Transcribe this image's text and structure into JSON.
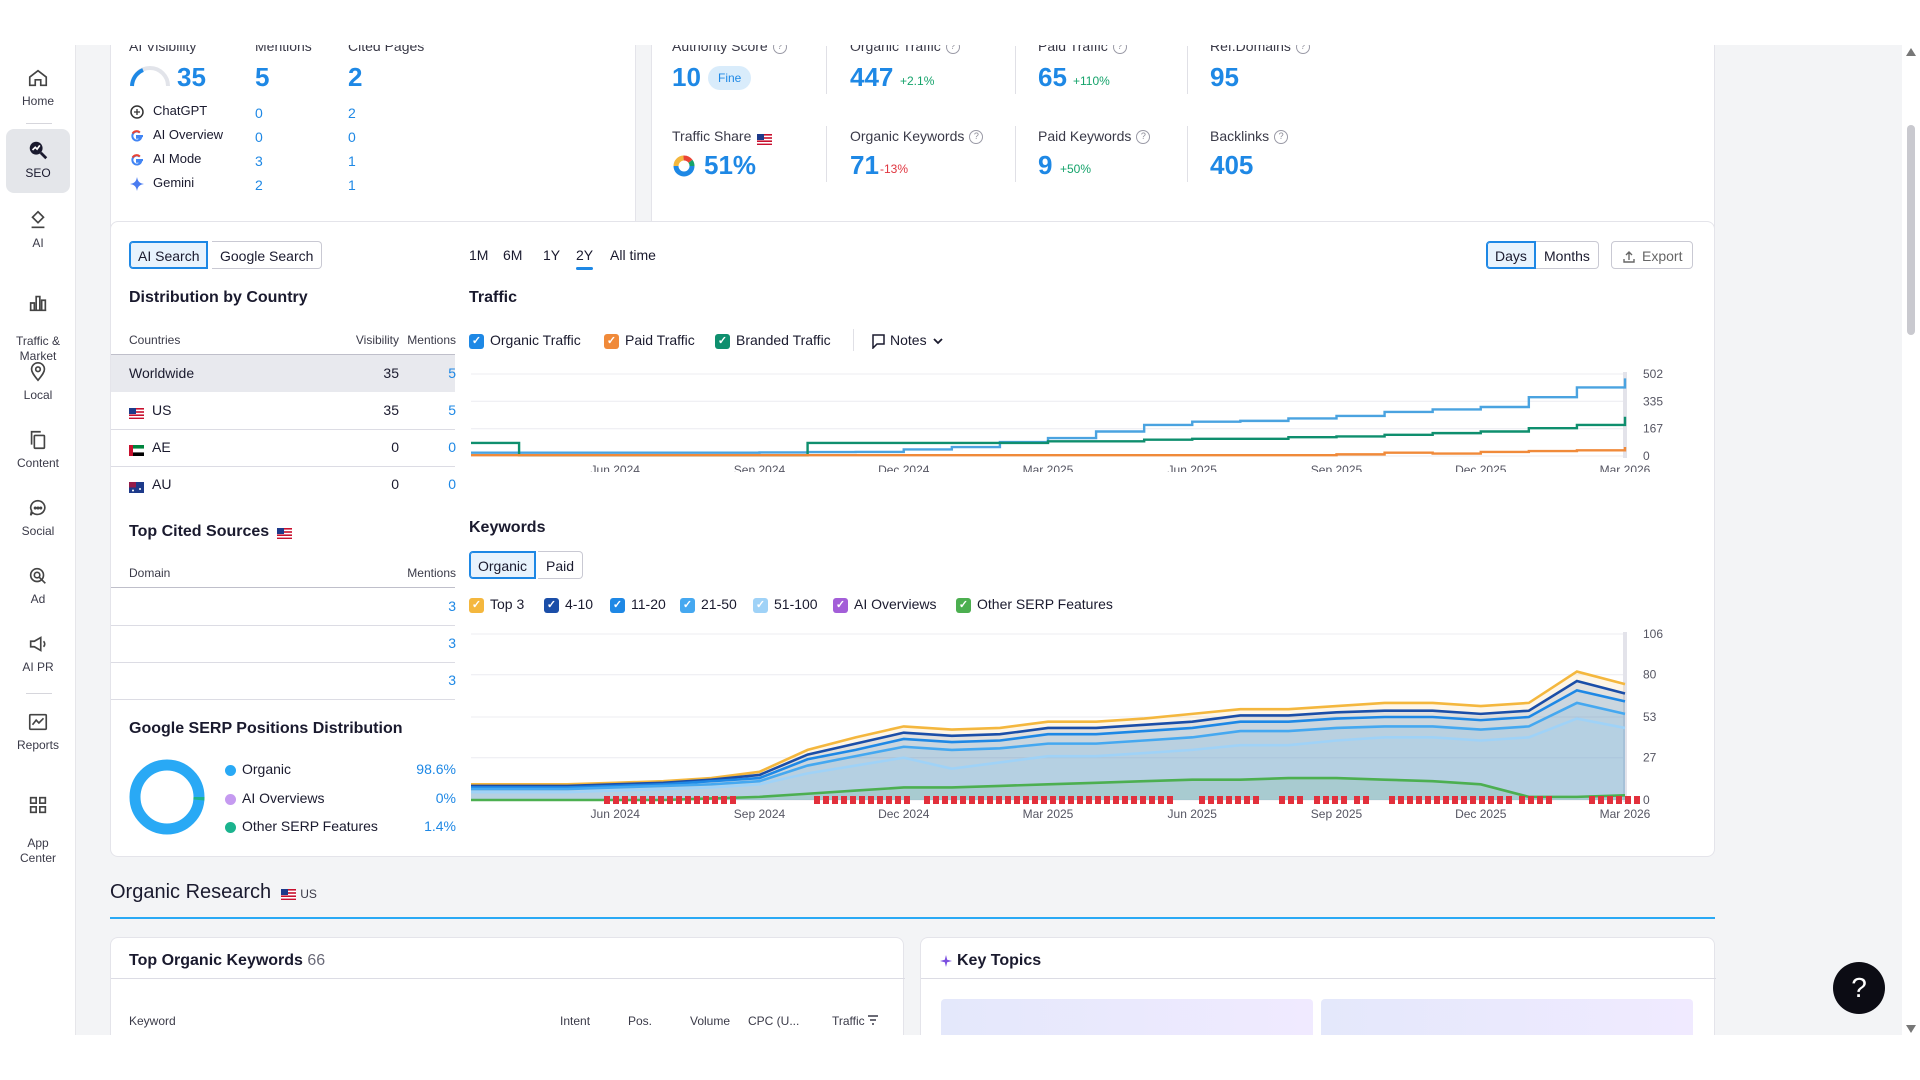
{
  "sidebar": {
    "items": [
      {
        "label": "Home",
        "icon": "home-icon"
      },
      {
        "label": "SEO",
        "icon": "seo-icon",
        "active": true
      },
      {
        "label": "AI",
        "icon": "ai-icon"
      },
      {
        "label": "Traffic &\nMarket",
        "icon": "bar-chart-icon"
      },
      {
        "label": "Local",
        "icon": "location-pin-icon"
      },
      {
        "label": "Content",
        "icon": "content-icon"
      },
      {
        "label": "Social",
        "icon": "chat-bubble-icon"
      },
      {
        "label": "Ad",
        "icon": "ad-target-icon"
      },
      {
        "label": "AI PR",
        "icon": "megaphone-icon"
      },
      {
        "label": "Reports",
        "icon": "reports-icon"
      },
      {
        "label": "App\nCenter",
        "icon": "app-grid-icon"
      }
    ]
  },
  "ai_card": {
    "headers": [
      "AI Visibility",
      "Mentions",
      "Cited Pages"
    ],
    "visibility": "35",
    "mentions": "5",
    "cited_pages": "2",
    "rows": [
      {
        "name": "ChatGPT",
        "mentions": "0",
        "cited": "2",
        "icon": "chatgpt-icon"
      },
      {
        "name": "AI Overview",
        "mentions": "0",
        "cited": "0",
        "icon": "google-icon"
      },
      {
        "name": "AI Mode",
        "mentions": "3",
        "cited": "1",
        "icon": "google-icon"
      },
      {
        "name": "Gemini",
        "mentions": "2",
        "cited": "1",
        "icon": "gemini-icon"
      }
    ]
  },
  "metrics": {
    "authority_score": {
      "label": "Authority Score",
      "value": "10",
      "badge": "Fine"
    },
    "organic_traffic": {
      "label": "Organic Traffic",
      "value": "447",
      "delta": "+2.1%"
    },
    "paid_traffic": {
      "label": "Paid Traffic",
      "value": "65",
      "delta": "+110%"
    },
    "ref_domains": {
      "label": "Ref.Domains",
      "value": "95"
    },
    "traffic_share": {
      "label": "Traffic Share",
      "value": "51%"
    },
    "organic_keywords": {
      "label": "Organic Keywords",
      "value": "71",
      "delta": "-13%"
    },
    "paid_keywords": {
      "label": "Paid Keywords",
      "value": "9",
      "delta": "+50%"
    },
    "backlinks": {
      "label": "Backlinks",
      "value": "405"
    }
  },
  "search_tabs": [
    "AI Search",
    "Google Search"
  ],
  "timeframes": [
    "1M",
    "6M",
    "1Y",
    "2Y",
    "All time"
  ],
  "active_timeframe": "2Y",
  "granularity": [
    "Days",
    "Months"
  ],
  "export_label": "Export",
  "distribution": {
    "title": "Distribution by Country",
    "headers": [
      "Countries",
      "Visibility",
      "Mentions"
    ],
    "rows": [
      {
        "country": "Worldwide",
        "visibility": "35",
        "mentions": "5"
      },
      {
        "country": "US",
        "visibility": "35",
        "mentions": "5"
      },
      {
        "country": "AE",
        "visibility": "0",
        "mentions": "0"
      },
      {
        "country": "AU",
        "visibility": "0",
        "mentions": "0"
      }
    ]
  },
  "cited_sources": {
    "title": "Top Cited Sources",
    "headers": [
      "Domain",
      "Mentions"
    ],
    "rows": [
      {
        "mentions": "3"
      },
      {
        "mentions": "3"
      },
      {
        "mentions": "3"
      }
    ]
  },
  "serp_distribution": {
    "title": "Google SERP Positions Distribution",
    "items": [
      {
        "label": "Organic",
        "value": "98.6%",
        "color": "#29a9f5"
      },
      {
        "label": "AI Overviews",
        "value": "0%",
        "color": "#c59af0"
      },
      {
        "label": "Other SERP Features",
        "value": "1.4%",
        "color": "#1bb38e"
      }
    ]
  },
  "traffic_section": {
    "title": "Traffic",
    "legend": [
      {
        "label": "Organic Traffic",
        "color": "#1e88e5"
      },
      {
        "label": "Paid Traffic",
        "color": "#f08a3a"
      },
      {
        "label": "Branded Traffic",
        "color": "#0f8f6e"
      }
    ],
    "notes_label": "Notes"
  },
  "keywords_section": {
    "title": "Keywords",
    "tabs": [
      "Organic",
      "Paid"
    ],
    "legend": [
      {
        "label": "Top 3",
        "color": "#f4b73e"
      },
      {
        "label": "4-10",
        "color": "#1b4ea8"
      },
      {
        "label": "11-20",
        "color": "#1e88e5"
      },
      {
        "label": "21-50",
        "color": "#45a8f0"
      },
      {
        "label": "51-100",
        "color": "#9fd2f7"
      },
      {
        "label": "AI Overviews",
        "color": "#a35ed8"
      },
      {
        "label": "Other SERP Features",
        "color": "#4caf50"
      }
    ]
  },
  "chart_data": [
    {
      "type": "line",
      "title": "Traffic",
      "x": [
        "2024-03",
        "2024-04",
        "2024-05",
        "2024-06",
        "2024-07",
        "2024-08",
        "2024-09",
        "2024-10",
        "2024-11",
        "2024-12",
        "2025-01",
        "2025-02",
        "2025-03",
        "2025-04",
        "2025-05",
        "2025-06",
        "2025-07",
        "2025-08",
        "2025-09",
        "2025-10",
        "2025-11",
        "2025-12",
        "2026-01",
        "2026-02",
        "2026-03"
      ],
      "x_tick_labels": [
        "Jun 2024",
        "Sep 2024",
        "Dec 2024",
        "Mar 2025",
        "Jun 2025",
        "Sep 2025",
        "Dec 2025",
        "Mar 2026"
      ],
      "ylim": [
        0,
        502
      ],
      "y_ticks": [
        0,
        167,
        335,
        502
      ],
      "series": [
        {
          "name": "Organic Traffic",
          "color": "#4aa3e0",
          "values": [
            20,
            20,
            20,
            20,
            20,
            20,
            22,
            24,
            25,
            40,
            55,
            85,
            110,
            150,
            190,
            210,
            215,
            230,
            245,
            270,
            285,
            300,
            360,
            420,
            475
          ]
        },
        {
          "name": "Branded Traffic",
          "color": "#0f8f6e",
          "values": [
            80,
            5,
            5,
            5,
            5,
            5,
            5,
            80,
            80,
            80,
            80,
            80,
            90,
            90,
            100,
            105,
            105,
            115,
            120,
            130,
            140,
            150,
            170,
            190,
            240
          ]
        },
        {
          "name": "Paid Traffic",
          "color": "#f08a3a",
          "values": [
            5,
            5,
            5,
            5,
            5,
            5,
            5,
            5,
            5,
            5,
            5,
            5,
            5,
            5,
            5,
            5,
            5,
            5,
            10,
            20,
            15,
            25,
            30,
            35,
            55
          ]
        }
      ]
    },
    {
      "type": "area",
      "title": "Keywords",
      "x": [
        "2024-03",
        "2024-04",
        "2024-05",
        "2024-06",
        "2024-07",
        "2024-08",
        "2024-09",
        "2024-10",
        "2024-11",
        "2024-12",
        "2025-01",
        "2025-02",
        "2025-03",
        "2025-04",
        "2025-05",
        "2025-06",
        "2025-07",
        "2025-08",
        "2025-09",
        "2025-10",
        "2025-11",
        "2025-12",
        "2026-01",
        "2026-02",
        "2026-03"
      ],
      "x_tick_labels": [
        "Jun 2024",
        "Sep 2024",
        "Dec 2024",
        "Mar 2025",
        "Jun 2025",
        "Sep 2025",
        "Dec 2025",
        "Mar 2026"
      ],
      "ylim": [
        0,
        106
      ],
      "y_ticks": [
        0,
        27,
        53,
        80,
        106
      ],
      "series": [
        {
          "name": "Top 3",
          "color": "#f4b73e",
          "values": [
            10,
            10,
            10,
            11,
            12,
            14,
            18,
            32,
            40,
            47,
            45,
            46,
            50,
            50,
            52,
            55,
            58,
            58,
            60,
            62,
            62,
            60,
            62,
            82,
            74
          ]
        },
        {
          "name": "4-10",
          "color": "#1b4ea8",
          "values": [
            9,
            9,
            9,
            10,
            11,
            13,
            16,
            29,
            36,
            43,
            41,
            42,
            46,
            46,
            48,
            50,
            54,
            54,
            56,
            57,
            57,
            55,
            57,
            76,
            68
          ]
        },
        {
          "name": "11-20",
          "color": "#1e88e5",
          "values": [
            8,
            8,
            8,
            9,
            10,
            12,
            14,
            26,
            32,
            39,
            37,
            38,
            42,
            42,
            44,
            46,
            50,
            50,
            52,
            53,
            53,
            51,
            53,
            70,
            63
          ]
        },
        {
          "name": "21-50",
          "color": "#45a8f0",
          "values": [
            7,
            7,
            7,
            8,
            9,
            10,
            12,
            22,
            28,
            34,
            32,
            33,
            36,
            36,
            38,
            40,
            44,
            44,
            46,
            47,
            47,
            45,
            47,
            62,
            55
          ]
        },
        {
          "name": "51-100",
          "color": "#9fd2f7",
          "values": [
            5,
            5,
            5,
            6,
            7,
            8,
            10,
            17,
            22,
            27,
            20,
            24,
            28,
            28,
            30,
            32,
            35,
            35,
            38,
            40,
            40,
            38,
            40,
            52,
            46
          ]
        },
        {
          "name": "Other SERP Features",
          "color": "#4caf50",
          "values": [
            0,
            0,
            0,
            0,
            0,
            1,
            2,
            4,
            6,
            8,
            8,
            9,
            10,
            11,
            12,
            13,
            13,
            14,
            14,
            13,
            12,
            10,
            2,
            2,
            3
          ]
        }
      ]
    }
  ],
  "organic_research": {
    "title": "Organic Research",
    "country": "US",
    "top_keywords": {
      "title": "Top Organic Keywords",
      "count": "66",
      "headers": [
        "Keyword",
        "Intent",
        "Pos.",
        "Volume",
        "CPC (U...",
        "Traffic"
      ]
    },
    "key_topics": {
      "title": "Key Topics"
    }
  },
  "help_label": "?"
}
